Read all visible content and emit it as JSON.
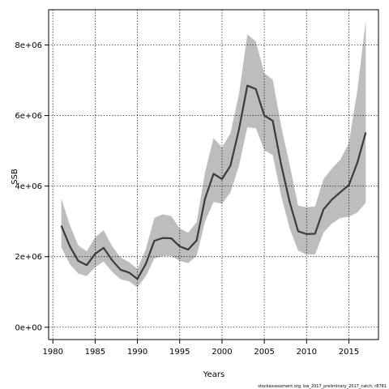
{
  "chart_data": {
    "type": "line",
    "title": "",
    "xlabel": "Years",
    "ylabel": "SSB",
    "footnote": "stockassessment.org, bw_2017_preliminary_2017_catch, r8781",
    "xlim": [
      1979.5,
      2018.5
    ],
    "ylim": [
      -350000,
      9000000
    ],
    "xticks": [
      1980,
      1985,
      1990,
      1995,
      2000,
      2005,
      2010,
      2015
    ],
    "xtick_labels": [
      "1980",
      "1985",
      "1990",
      "1995",
      "2000",
      "2005",
      "2010",
      "2015"
    ],
    "yticks": [
      0,
      2000000,
      4000000,
      6000000,
      8000000
    ],
    "ytick_labels": [
      "0e+00",
      "2e+06",
      "4e+06",
      "6e+06",
      "8e+06"
    ],
    "grid": true,
    "colors": {
      "line": "#3b3b3b",
      "band": "#bdbdbd",
      "grid": "#000000"
    },
    "x": [
      1981,
      1982,
      1983,
      1984,
      1985,
      1986,
      1987,
      1988,
      1989,
      1990,
      1991,
      1992,
      1993,
      1994,
      1995,
      1996,
      1997,
      1998,
      1999,
      2000,
      2001,
      2002,
      2003,
      2004,
      2005,
      2006,
      2007,
      2008,
      2009,
      2010,
      2011,
      2012,
      2013,
      2014,
      2015,
      2016,
      2017
    ],
    "series": [
      {
        "values": [
          2880000,
          2300000,
          1880000,
          1760000,
          2080000,
          2250000,
          1900000,
          1630000,
          1550000,
          1370000,
          1800000,
          2450000,
          2530000,
          2520000,
          2290000,
          2200000,
          2460000,
          3650000,
          4350000,
          4200000,
          4580000,
          5600000,
          6850000,
          6750000,
          6000000,
          5850000,
          4600000,
          3550000,
          2720000,
          2640000,
          2650000,
          3340000,
          3620000,
          3830000,
          4030000,
          4660000,
          5520000
        ]
      },
      {
        "name": "upper",
        "values": [
          3650000,
          2900000,
          2320000,
          2150000,
          2550000,
          2750000,
          2300000,
          1980000,
          1850000,
          1650000,
          2220000,
          3100000,
          3200000,
          3150000,
          2800000,
          2680000,
          2980000,
          4400000,
          5360000,
          5100000,
          5500000,
          6600000,
          8300000,
          8100000,
          7200000,
          7020000,
          5700000,
          4600000,
          3450000,
          3400000,
          3420000,
          4200000,
          4500000,
          4750000,
          5220000,
          6700000,
          8700000
        ]
      },
      {
        "name": "lower",
        "values": [
          2270000,
          1790000,
          1520000,
          1450000,
          1700000,
          1860000,
          1570000,
          1360000,
          1300000,
          1130000,
          1450000,
          1950000,
          2020000,
          2020000,
          1880000,
          1820000,
          2020000,
          3000000,
          3550000,
          3500000,
          3820000,
          4570000,
          5670000,
          5640000,
          5020000,
          4880000,
          3720000,
          2800000,
          2170000,
          2060000,
          2060000,
          2680000,
          2940000,
          3100000,
          3130000,
          3250000,
          3530000
        ]
      }
    ]
  }
}
